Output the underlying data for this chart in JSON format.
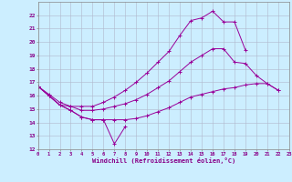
{
  "xlabel": "Windchill (Refroidissement éolien,°C)",
  "background_color": "#cceeff",
  "grid_color": "#b0b8cc",
  "line_color": "#990099",
  "xlim": [
    0,
    23
  ],
  "ylim": [
    12,
    23
  ],
  "xticks": [
    0,
    1,
    2,
    3,
    4,
    5,
    6,
    7,
    8,
    9,
    10,
    11,
    12,
    13,
    14,
    15,
    16,
    17,
    18,
    19,
    20,
    21,
    22,
    23
  ],
  "yticks": [
    12,
    13,
    14,
    15,
    16,
    17,
    18,
    19,
    20,
    21,
    22
  ],
  "series": [
    [
      16.7,
      16.0,
      15.3,
      14.9,
      14.4,
      14.2,
      14.2,
      12.4,
      13.7,
      null,
      null,
      null,
      null,
      null,
      null,
      null,
      null,
      null,
      null,
      null,
      null,
      null,
      null,
      null
    ],
    [
      16.7,
      16.0,
      15.3,
      14.9,
      14.4,
      14.2,
      14.2,
      14.2,
      14.2,
      14.3,
      14.5,
      14.8,
      15.1,
      15.5,
      15.9,
      16.1,
      16.3,
      16.5,
      16.6,
      16.8,
      16.9,
      16.9,
      16.4,
      null
    ],
    [
      16.7,
      16.1,
      15.5,
      15.2,
      14.9,
      14.9,
      15.0,
      15.2,
      15.4,
      15.7,
      16.1,
      16.6,
      17.1,
      17.8,
      18.5,
      19.0,
      19.5,
      19.5,
      18.5,
      18.4,
      17.5,
      16.9,
      16.4,
      null
    ],
    [
      16.7,
      16.0,
      15.3,
      15.2,
      15.2,
      15.2,
      15.5,
      15.9,
      16.4,
      17.0,
      17.7,
      18.5,
      19.3,
      20.5,
      21.6,
      21.8,
      22.3,
      21.5,
      21.5,
      19.4,
      null,
      null,
      null,
      null
    ]
  ]
}
